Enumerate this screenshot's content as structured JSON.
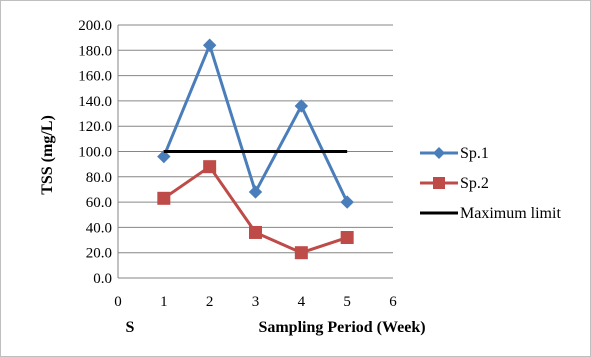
{
  "chart_data": {
    "type": "line",
    "title": "",
    "xlabel": "Sampling Period (Week)",
    "ylabel": "TSS (mg/L)",
    "stray_label": "S",
    "xlim": [
      0,
      6
    ],
    "ylim": [
      0,
      200
    ],
    "x_ticks": [
      "0",
      "1",
      "2",
      "3",
      "4",
      "5",
      "6"
    ],
    "y_ticks": [
      "0.0",
      "20.0",
      "40.0",
      "60.0",
      "80.0",
      "100.0",
      "120.0",
      "140.0",
      "160.0",
      "180.0",
      "200.0"
    ],
    "grid": "horizontal",
    "legend_position": "right",
    "series": [
      {
        "name": "Sp.1",
        "color": "#4a7ebb",
        "marker": "diamond",
        "x": [
          1,
          2,
          3,
          4,
          5
        ],
        "y": [
          96,
          184,
          68,
          136,
          60
        ]
      },
      {
        "name": "Sp.2",
        "color": "#be4b48",
        "marker": "square",
        "x": [
          1,
          2,
          3,
          4,
          5
        ],
        "y": [
          63,
          88,
          36,
          20,
          32
        ]
      },
      {
        "name": "Maximum limit",
        "color": "#000000",
        "marker": "none",
        "x": [
          1,
          5
        ],
        "y": [
          100,
          100
        ]
      }
    ]
  }
}
